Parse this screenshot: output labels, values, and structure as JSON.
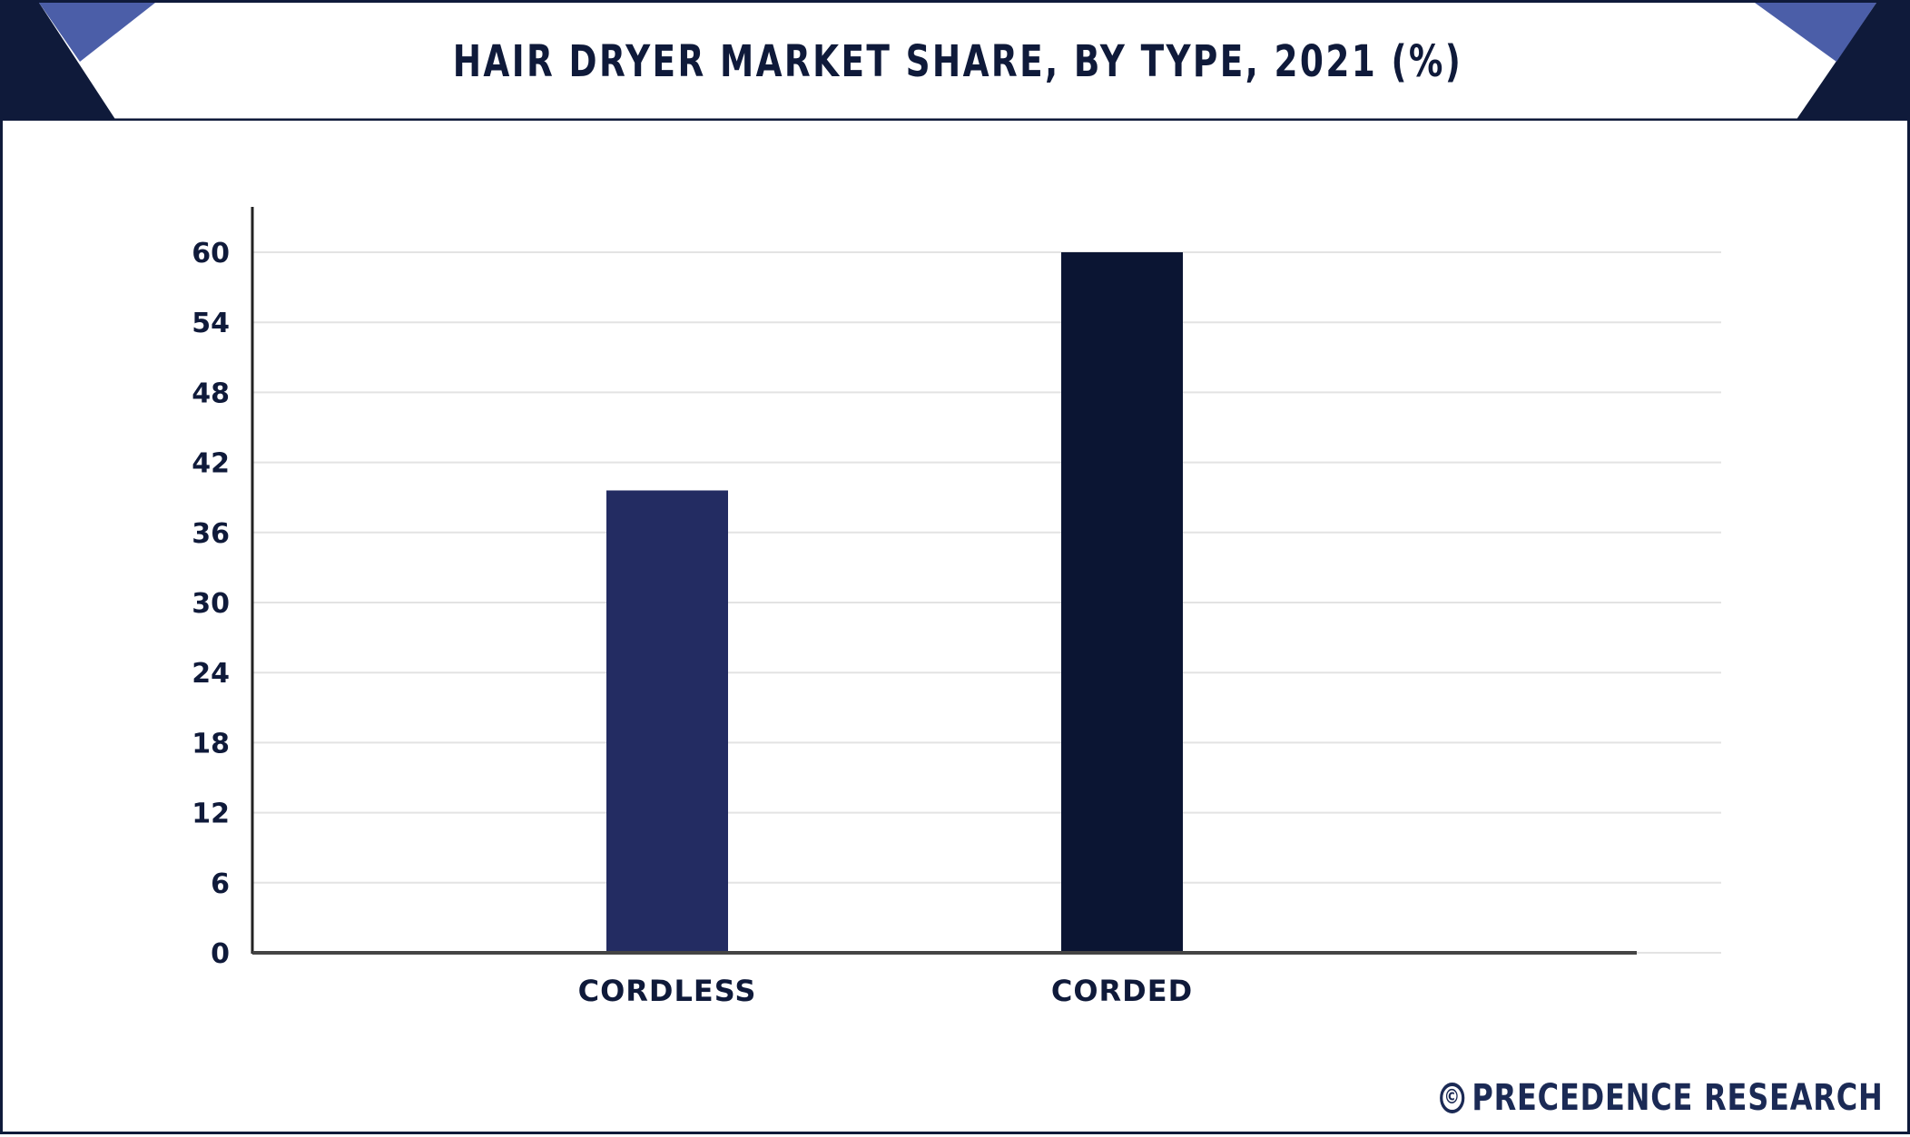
{
  "colors": {
    "navy": "#0f1a3a",
    "accent": "#4b5ea8",
    "bar_cordless": "#232c62",
    "bar_corded": "#0b1533",
    "grid": "#e3e3e3"
  },
  "brand": {
    "symbol": "©",
    "name": "PRECEDENCE RESEARCH"
  },
  "chart_data": {
    "type": "bar",
    "title": "HAIR DRYER MARKET SHARE, BY TYPE, 2021 (%)",
    "xlabel": "",
    "ylabel": "",
    "categories": [
      "CORDLESS",
      "CORDED"
    ],
    "values": [
      39.6,
      60.4
    ],
    "ylim": [
      0,
      60
    ],
    "yticks": [
      0,
      6,
      12,
      18,
      24,
      30,
      36,
      42,
      48,
      54,
      60
    ],
    "grid": true,
    "legend": "none"
  }
}
